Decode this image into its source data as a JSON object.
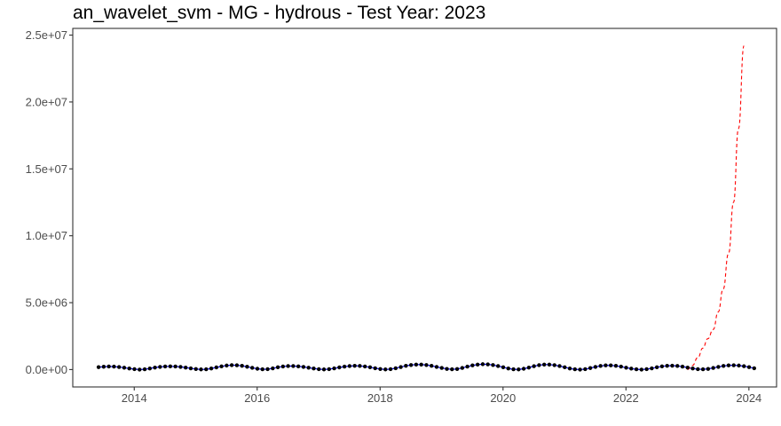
{
  "chart_data": {
    "type": "line",
    "title": "an_wavelet_svm - MG - hydrous - Test Year: 2023",
    "xlabel": "",
    "ylabel": "",
    "xlim": [
      2013.0,
      2024.45
    ],
    "ylim": [
      -1300000,
      25500000
    ],
    "x_ticks": [
      2014,
      2016,
      2018,
      2020,
      2022,
      2024
    ],
    "x_tick_labels": [
      "2014",
      "2016",
      "2018",
      "2020",
      "2022",
      "2024"
    ],
    "y_ticks": [
      0,
      5000000,
      10000000,
      15000000,
      20000000,
      25000000
    ],
    "y_tick_labels": [
      "0.0e+00",
      "5.0e+06",
      "1.0e+07",
      "1.5e+07",
      "2.0e+07",
      "2.5e+07"
    ],
    "grid": false,
    "legend": "none",
    "series": [
      {
        "role": "observed",
        "style": "line+points",
        "line_color": "#0000ff",
        "point_color": "#000000",
        "x_start": 2013.42,
        "x_step": 0.08333,
        "values": [
          180000,
          210000,
          230000,
          220000,
          190000,
          140000,
          80000,
          30000,
          0,
          20000,
          80000,
          150000,
          200000,
          230000,
          240000,
          230000,
          200000,
          150000,
          90000,
          40000,
          10000,
          20000,
          80000,
          160000,
          240000,
          300000,
          330000,
          320000,
          280000,
          210000,
          130000,
          60000,
          20000,
          30000,
          90000,
          170000,
          230000,
          260000,
          260000,
          240000,
          200000,
          140000,
          80000,
          30000,
          10000,
          30000,
          90000,
          160000,
          220000,
          260000,
          280000,
          270000,
          230000,
          170000,
          100000,
          40000,
          10000,
          30000,
          100000,
          190000,
          280000,
          340000,
          370000,
          370000,
          340000,
          280000,
          200000,
          120000,
          50000,
          20000,
          40000,
          120000,
          220000,
          310000,
          370000,
          400000,
          390000,
          340000,
          260000,
          170000,
          80000,
          20000,
          10000,
          60000,
          150000,
          250000,
          330000,
          370000,
          370000,
          330000,
          260000,
          170000,
          80000,
          20000,
          0,
          30000,
          110000,
          200000,
          270000,
          310000,
          310000,
          280000,
          220000,
          140000,
          70000,
          20000,
          0,
          30000,
          90000,
          170000,
          240000,
          280000,
          290000,
          270000,
          220000,
          150000,
          80000,
          30000,
          20000,
          50000,
          120000,
          200000,
          270000,
          310000,
          320000,
          300000,
          250000,
          180000,
          100000
        ]
      },
      {
        "role": "forecast",
        "style": "dashed-line",
        "color": "#ff0000",
        "x": [
          2023.0,
          2023.08,
          2023.17,
          2023.25,
          2023.33,
          2023.42,
          2023.5,
          2023.58,
          2023.67,
          2023.75,
          2023.83,
          2023.92
        ],
        "values": [
          0,
          300000,
          900000,
          1600000,
          2300000,
          3000000,
          4300000,
          6000000,
          8700000,
          12500000,
          18000000,
          24200000
        ]
      }
    ]
  }
}
